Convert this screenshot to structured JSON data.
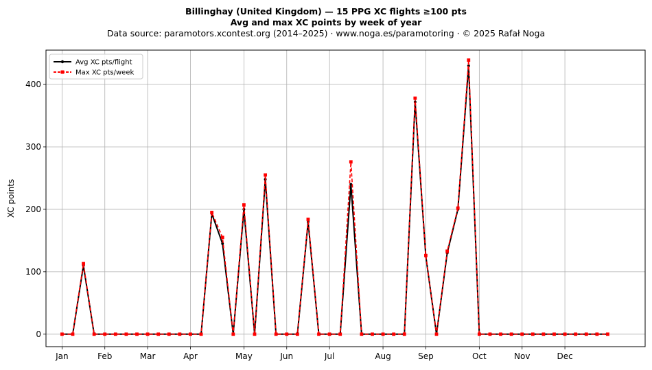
{
  "title_line1": "Billinghay (United Kingdom)  —  15 PPG XC flights ≥100 pts",
  "title_line2": "Avg and max XC points by week of year",
  "title_line3": "Data source: paramotors.xcontest.org (2014–2025)  ·  www.noga.es/paramotoring  ·  © 2025 Rafał Noga",
  "chart_data": {
    "type": "line",
    "title": "Billinghay (United Kingdom)  —  15 PPG XC flights ≥100 pts",
    "subtitle": "Avg and max XC points by week of year",
    "xlabel": "",
    "ylabel": "XC points",
    "x_unit": "week of year",
    "xlim": [
      -1.5,
      54.5
    ],
    "ylim": [
      -20,
      455
    ],
    "grid": true,
    "legend_position": "upper-left",
    "x_ticks": [
      {
        "label": "Jan",
        "x": 0
      },
      {
        "label": "Feb",
        "x": 4
      },
      {
        "label": "Mar",
        "x": 8
      },
      {
        "label": "Apr",
        "x": 12
      },
      {
        "label": "May",
        "x": 17
      },
      {
        "label": "Jun",
        "x": 21
      },
      {
        "label": "Jul",
        "x": 25
      },
      {
        "label": "Aug",
        "x": 30
      },
      {
        "label": "Sep",
        "x": 34
      },
      {
        "label": "Oct",
        "x": 39
      },
      {
        "label": "Nov",
        "x": 43
      },
      {
        "label": "Dec",
        "x": 47
      }
    ],
    "y_ticks": [
      0,
      100,
      200,
      300,
      400
    ],
    "x": [
      0,
      1,
      2,
      3,
      4,
      5,
      6,
      7,
      8,
      9,
      10,
      11,
      12,
      13,
      14,
      15,
      16,
      17,
      18,
      19,
      20,
      21,
      22,
      23,
      24,
      25,
      26,
      27,
      28,
      29,
      30,
      31,
      32,
      33,
      34,
      35,
      36,
      37,
      38,
      39,
      40,
      41,
      42,
      43,
      44,
      45,
      46,
      47,
      48,
      49,
      50,
      51
    ],
    "series": [
      {
        "name": "Avg XC pts/flight",
        "color": "#000000",
        "style": "solid",
        "marker": "circle",
        "values": [
          0,
          0,
          110,
          0,
          0,
          0,
          0,
          0,
          0,
          0,
          0,
          0,
          0,
          0,
          193,
          145,
          0,
          200,
          0,
          248,
          0,
          0,
          0,
          180,
          0,
          0,
          0,
          240,
          0,
          0,
          0,
          0,
          0,
          372,
          125,
          0,
          130,
          200,
          430,
          0,
          0,
          0,
          0,
          0,
          0,
          0,
          0,
          0,
          0,
          0,
          0,
          0
        ]
      },
      {
        "name": "Max XC pts/week",
        "color": "#ff0000",
        "style": "dashed",
        "marker": "square",
        "values": [
          0,
          0,
          113,
          0,
          0,
          0,
          0,
          0,
          0,
          0,
          0,
          0,
          0,
          0,
          195,
          155,
          0,
          207,
          0,
          255,
          0,
          0,
          0,
          184,
          0,
          0,
          0,
          276,
          0,
          0,
          0,
          0,
          0,
          378,
          126,
          0,
          133,
          202,
          439,
          0,
          0,
          0,
          0,
          0,
          0,
          0,
          0,
          0,
          0,
          0,
          0,
          0
        ]
      }
    ]
  }
}
